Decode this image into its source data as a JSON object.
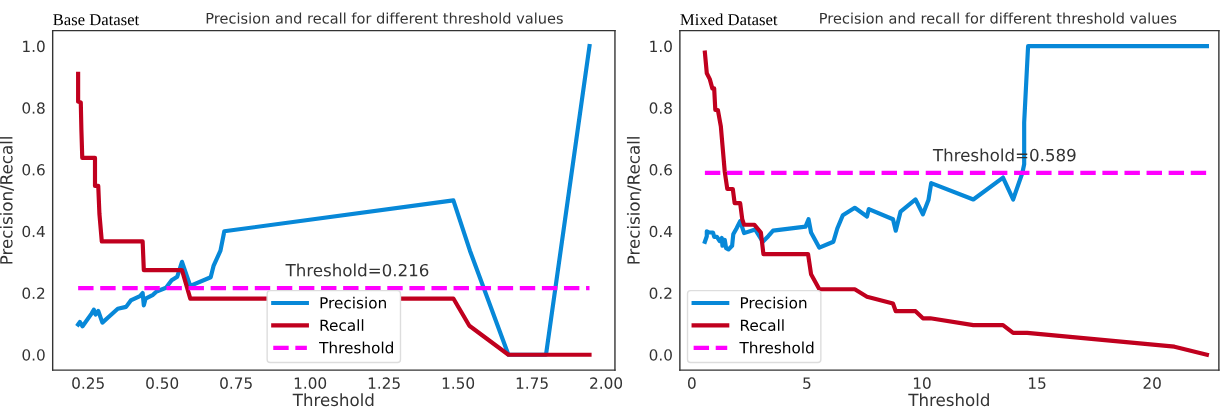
{
  "chart_data": [
    {
      "type": "line",
      "title": "Base Dataset",
      "subtitle": "Precision and recall for different threshold values",
      "xlabel": "Threshold",
      "ylabel": "Precision/Recall",
      "xlim": [
        0.13,
        2.03
      ],
      "xticks": [
        {
          "value": 0.25,
          "label": "0.25"
        },
        {
          "value": 0.5,
          "label": "0.50"
        },
        {
          "value": 0.75,
          "label": "0.75"
        },
        {
          "value": 1.0,
          "label": "1.00"
        },
        {
          "value": 1.25,
          "label": "1.25"
        },
        {
          "value": 1.5,
          "label": "1.50"
        },
        {
          "value": 1.75,
          "label": "1.75"
        },
        {
          "value": 2.0,
          "label": "2.00"
        }
      ],
      "ylim": [
        -0.05,
        1.05
      ],
      "yticks": [
        {
          "value": 0,
          "label": "0.0"
        },
        {
          "value": 0.2,
          "label": "0.2"
        },
        {
          "value": 0.4,
          "label": "0.4"
        },
        {
          "value": 0.6,
          "label": "0.6"
        },
        {
          "value": 0.8,
          "label": "0.8"
        },
        {
          "value": 1,
          "label": "1.0"
        }
      ],
      "grid": false,
      "legend": "bottom",
      "marker": "none",
      "series": [
        {
          "name": "Precision",
          "color": "#0788d8",
          "x": [
            0.216,
            0.222,
            0.231,
            0.262,
            0.269,
            0.275,
            0.284,
            0.298,
            0.319,
            0.35,
            0.378,
            0.394,
            0.425,
            0.434,
            0.438,
            0.444,
            0.469,
            0.481,
            0.513,
            0.532,
            0.551,
            0.567,
            0.595,
            0.664,
            0.674,
            0.697,
            0.71,
            1.484,
            1.54,
            1.67,
            1.797,
            1.944
          ],
          "values": [
            0.098,
            0.106,
            0.092,
            0.134,
            0.146,
            0.13,
            0.142,
            0.104,
            0.122,
            0.149,
            0.155,
            0.176,
            0.19,
            0.2,
            0.16,
            0.182,
            0.194,
            0.205,
            0.217,
            0.241,
            0.253,
            0.301,
            0.223,
            0.251,
            0.289,
            0.337,
            0.4,
            0.5,
            0.337,
            0.0,
            0.0,
            1.0
          ]
        },
        {
          "name": "Recall",
          "color": "#c0001e",
          "x": [
            0.216,
            0.216,
            0.225,
            0.227,
            0.23,
            0.273,
            0.273,
            0.284,
            0.288,
            0.296,
            0.434,
            0.438,
            0.567,
            0.595,
            1.484,
            1.538,
            1.67,
            1.944
          ],
          "values": [
            0.91,
            0.82,
            0.817,
            0.73,
            0.638,
            0.638,
            0.547,
            0.547,
            0.456,
            0.367,
            0.367,
            0.274,
            0.274,
            0.182,
            0.182,
            0.094,
            0.0,
            0.0
          ]
        },
        {
          "name": "Threshold",
          "color": "#ff00ff",
          "line_style": "dashed",
          "x": [
            0.216,
            1.944
          ],
          "values": [
            0.216,
            0.216
          ]
        }
      ],
      "annotations": [
        {
          "text": "Threshold=0.216",
          "x": 1.16,
          "y": 0.216
        }
      ]
    },
    {
      "type": "line",
      "title": "Mixed Dataset",
      "subtitle": "Precision and recall for different threshold values",
      "xlabel": "Threshold",
      "ylabel": "Precision/Recall",
      "xlim": [
        -0.52,
        22.9
      ],
      "xticks": [
        0,
        5,
        10,
        15,
        20
      ],
      "ylim": [
        -0.05,
        1.05
      ],
      "yticks": [
        {
          "value": 0,
          "label": "0.0"
        },
        {
          "value": 0.2,
          "label": "0.2"
        },
        {
          "value": 0.4,
          "label": "0.4"
        },
        {
          "value": 0.6,
          "label": "0.6"
        },
        {
          "value": 0.8,
          "label": "0.8"
        },
        {
          "value": 1,
          "label": "1.0"
        }
      ],
      "grid": false,
      "legend": "bottom left",
      "marker": "none",
      "series": [
        {
          "name": "Precision",
          "color": "#0788d8",
          "x": [
            0.567,
            0.65,
            0.65,
            0.76,
            0.92,
            0.97,
            1.09,
            1.21,
            1.3,
            1.33,
            1.43,
            1.49,
            1.59,
            1.75,
            1.8,
            1.94,
            2.1,
            2.27,
            2.75,
            3.08,
            3.32,
            3.53,
            4.94,
            5.07,
            5.18,
            5.54,
            6.15,
            6.32,
            6.56,
            7.08,
            7.61,
            7.69,
            8.74,
            8.86,
            9.07,
            9.72,
            10.04,
            10.28,
            10.4,
            12.23,
            13.52,
            13.96,
            14.36,
            14.44,
            14.44,
            14.61,
            22.38
          ],
          "values": [
            0.366,
            0.384,
            0.4,
            0.396,
            0.396,
            0.382,
            0.382,
            0.368,
            0.378,
            0.353,
            0.372,
            0.345,
            0.341,
            0.353,
            0.39,
            0.409,
            0.433,
            0.394,
            0.406,
            0.366,
            0.384,
            0.402,
            0.415,
            0.439,
            0.396,
            0.347,
            0.366,
            0.409,
            0.452,
            0.476,
            0.448,
            0.472,
            0.439,
            0.402,
            0.464,
            0.503,
            0.455,
            0.501,
            0.556,
            0.503,
            0.574,
            0.503,
            0.589,
            0.617,
            0.752,
            1.0,
            1.0
          ]
        },
        {
          "name": "Recall",
          "color": "#c0001e",
          "x": [
            0.567,
            0.65,
            0.78,
            0.89,
            0.97,
            1.02,
            1.13,
            1.26,
            1.33,
            1.43,
            1.54,
            1.78,
            1.86,
            2.1,
            2.19,
            2.27,
            2.72,
            3.0,
            3.11,
            5.05,
            5.18,
            5.54,
            7.08,
            7.61,
            8.74,
            8.86,
            9.72,
            10.04,
            10.36,
            12.23,
            13.52,
            13.96,
            14.57,
            20.97,
            22.38
          ],
          "values": [
            0.979,
            0.912,
            0.893,
            0.863,
            0.863,
            0.793,
            0.793,
            0.74,
            0.679,
            0.593,
            0.537,
            0.537,
            0.491,
            0.491,
            0.439,
            0.421,
            0.421,
            0.396,
            0.326,
            0.326,
            0.261,
            0.212,
            0.212,
            0.188,
            0.166,
            0.141,
            0.141,
            0.118,
            0.118,
            0.096,
            0.096,
            0.071,
            0.071,
            0.026,
            0.0
          ]
        },
        {
          "name": "Threshold",
          "color": "#ff00ff",
          "line_style": "dashed",
          "x": [
            0.567,
            22.38
          ],
          "values": [
            0.589,
            0.589
          ]
        }
      ],
      "annotations": [
        {
          "text": "Threshold=0.589",
          "x": 13.6,
          "y": 0.589
        }
      ]
    }
  ]
}
